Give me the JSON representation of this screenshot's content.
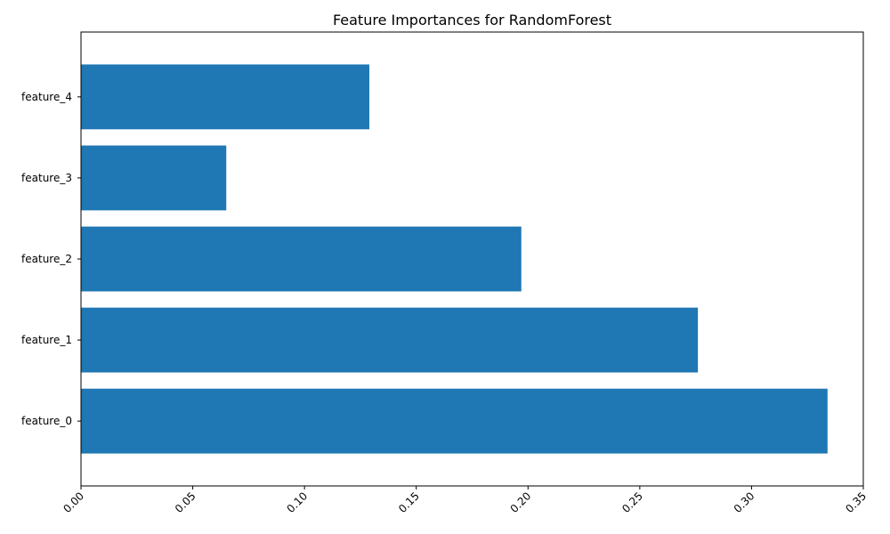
{
  "chart_data": {
    "type": "bar",
    "orientation": "horizontal",
    "title": "Feature Importances for RandomForest",
    "xlabel": "",
    "ylabel": "",
    "categories": [
      "feature_0",
      "feature_1",
      "feature_2",
      "feature_3",
      "feature_4"
    ],
    "values": [
      0.334,
      0.276,
      0.197,
      0.065,
      0.129
    ],
    "xlim": [
      0,
      0.35
    ],
    "xticks": [
      "0.00",
      "0.05",
      "0.10",
      "0.15",
      "0.20",
      "0.25",
      "0.30",
      "0.35"
    ],
    "xtick_rotation": 45,
    "grid": false,
    "legend": "none",
    "bar_color": "#1f77b4"
  }
}
